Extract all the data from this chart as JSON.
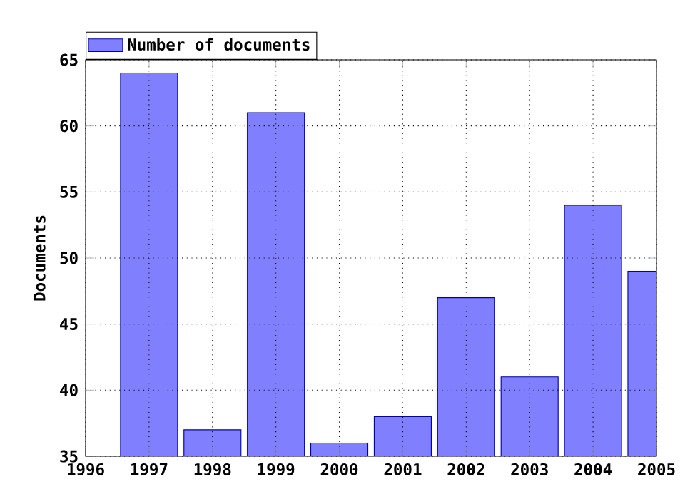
{
  "chart_data": {
    "type": "bar",
    "ylabel": "Documents",
    "x": [
      1997,
      1998,
      1999,
      2000,
      2001,
      2002,
      2003,
      2004,
      2005
    ],
    "series": [
      {
        "name": "Number of documents",
        "color": "#8080ff",
        "values": [
          64,
          37,
          61,
          36,
          38,
          47,
          41,
          54,
          49
        ]
      }
    ],
    "xlim": [
      1996,
      2005
    ],
    "xticks": [
      1996,
      1997,
      1998,
      1999,
      2000,
      2001,
      2002,
      2003,
      2004,
      2005
    ],
    "ylim": [
      35,
      65
    ],
    "yticks": [
      35,
      40,
      45,
      50,
      55,
      60,
      65
    ],
    "grid": true,
    "legend": "top left"
  }
}
